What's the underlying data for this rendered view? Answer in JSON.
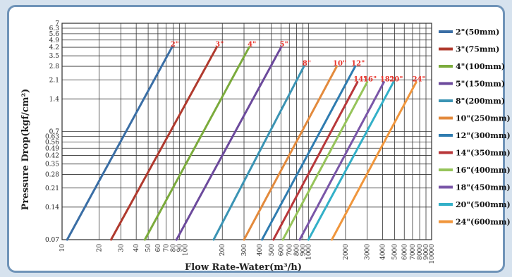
{
  "chart_data": {
    "type": "line",
    "title": "",
    "xlabel": "Flow Rate-Water(m³/h)",
    "ylabel": "Pressure Drop(kgf/cm²)",
    "x_scale": "log",
    "y_scale": "log",
    "xlim": [
      10,
      10000
    ],
    "ylim": [
      0.07,
      7
    ],
    "x_ticks": [
      "10",
      "20",
      "30",
      "40",
      "50",
      "60",
      "70",
      "80",
      "90",
      "100",
      "200",
      "300",
      "400",
      "500",
      "600",
      "700",
      "800",
      "900",
      "1000",
      "2000",
      "3000",
      "4000",
      "5000",
      "6000",
      "7000",
      "8000",
      "9000",
      "10000"
    ],
    "x_tick_values": [
      10,
      20,
      30,
      40,
      50,
      60,
      70,
      80,
      90,
      100,
      200,
      300,
      400,
      500,
      600,
      700,
      800,
      900,
      1000,
      2000,
      3000,
      4000,
      5000,
      6000,
      7000,
      8000,
      9000,
      10000
    ],
    "y_ticks": [
      "0.07",
      "0.14",
      "0.21",
      "0.28",
      "0.35",
      "0.42",
      "0.49",
      "0.56",
      "0.63",
      "0.7",
      "1.4",
      "2.1",
      "2.8",
      "3.5",
      "4.2",
      "4.9",
      "5.6",
      "6.3",
      "7"
    ],
    "y_tick_values": [
      0.07,
      0.14,
      0.21,
      0.28,
      0.35,
      0.42,
      0.49,
      0.56,
      0.63,
      0.7,
      1.4,
      2.1,
      2.8,
      3.5,
      4.2,
      4.9,
      5.6,
      6.3,
      7
    ],
    "grid": true,
    "legend_position": "right",
    "series": [
      {
        "name": "2\"(50mm)",
        "label": "2\"",
        "color": "#3a6ea5",
        "x": [
          11,
          78
        ],
        "y": [
          0.07,
          4.2
        ]
      },
      {
        "name": "3\"(75mm)",
        "label": "3\"",
        "color": "#b03a2e",
        "x": [
          25,
          180
        ],
        "y": [
          0.07,
          4.2
        ]
      },
      {
        "name": "4\"(100mm)",
        "label": "4\"",
        "color": "#7bab3c",
        "x": [
          47,
          330
        ],
        "y": [
          0.07,
          4.2
        ]
      },
      {
        "name": "5\"(150mm)",
        "label": "5\"",
        "color": "#6c4a9c",
        "x": [
          85,
          600
        ],
        "y": [
          0.07,
          4.2
        ]
      },
      {
        "name": "8\"(200mm)",
        "label": "8\"",
        "color": "#3b94b4",
        "x": [
          170,
          920
        ],
        "y": [
          0.07,
          2.8
        ]
      },
      {
        "name": "10\"(250mm)",
        "label": "10\"",
        "color": "#e38a3c",
        "x": [
          300,
          1700
        ],
        "y": [
          0.07,
          2.8
        ]
      },
      {
        "name": "12\"(300mm)",
        "label": "12\"",
        "color": "#2f7cb0",
        "x": [
          420,
          2400
        ],
        "y": [
          0.07,
          2.8
        ]
      },
      {
        "name": "14\"(350mm)",
        "label": "14\"",
        "color": "#b8373a",
        "x": [
          520,
          2500
        ],
        "y": [
          0.07,
          2.0
        ]
      },
      {
        "name": "16\"(400mm)",
        "label": "16\"",
        "color": "#96c45a",
        "x": [
          620,
          3000
        ],
        "y": [
          0.07,
          2.0
        ]
      },
      {
        "name": "18\"(450mm)",
        "label": "18\"",
        "color": "#7a56a8",
        "x": [
          850,
          4100
        ],
        "y": [
          0.07,
          2.0
        ]
      },
      {
        "name": "20\"(500mm)",
        "label": "20\"",
        "color": "#33b0c8",
        "x": [
          1000,
          4900
        ],
        "y": [
          0.07,
          2.0
        ]
      },
      {
        "name": "24\"(600mm)",
        "label": "24\"",
        "color": "#f0963c",
        "x": [
          1550,
          7500
        ],
        "y": [
          0.07,
          2.0
        ]
      }
    ]
  }
}
